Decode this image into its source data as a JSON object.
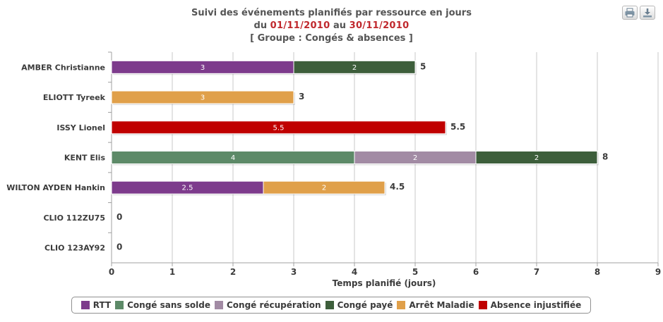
{
  "header": {
    "title": "Suivi des événements planifiés par ressource en jours",
    "range_prefix": "du",
    "date_from": "01/11/2010",
    "range_mid": "au",
    "date_to": "30/11/2010",
    "group_line": "[ Groupe : Congés & absences ]"
  },
  "toolbar": {
    "print_icon": "printer-icon",
    "export_icon": "download-icon"
  },
  "chart_data": {
    "type": "bar",
    "orientation": "horizontal",
    "stacked": true,
    "categories": [
      "AMBER Christianne",
      "ELIOTT Tyreek",
      "ISSY Lionel",
      "KENT Elis",
      "WILTON AYDEN Hankin",
      "CLIO 112ZU75",
      "CLIO 123AY92"
    ],
    "series": [
      {
        "name": "RTT",
        "color": "#7d3b8c",
        "values": [
          3,
          0,
          0,
          0,
          2.5,
          0,
          0
        ]
      },
      {
        "name": "Congé sans solde",
        "color": "#5d8a68",
        "values": [
          0,
          0,
          0,
          4,
          0,
          0,
          0
        ]
      },
      {
        "name": "Congé récupération",
        "color": "#a28ba4",
        "values": [
          0,
          0,
          0,
          2,
          0,
          0,
          0
        ]
      },
      {
        "name": "Congé payé",
        "color": "#3d5e3b",
        "values": [
          2,
          0,
          0,
          2,
          0,
          0,
          0
        ]
      },
      {
        "name": "Arrêt Maladie",
        "color": "#e0a04a",
        "values": [
          0,
          3,
          0,
          0,
          2,
          0,
          0
        ]
      },
      {
        "name": "Absence injustifiée",
        "color": "#c00000",
        "values": [
          0,
          0,
          5.5,
          0,
          0,
          0,
          0
        ]
      }
    ],
    "totals": [
      "5",
      "3",
      "5.5",
      "8",
      "4.5",
      "0",
      "0"
    ],
    "xlabel": "Temps planifié (jours)",
    "xlim": [
      0,
      9
    ],
    "xticks": [
      "0",
      "1",
      "2",
      "3",
      "4",
      "5",
      "6",
      "7",
      "8",
      "9"
    ],
    "grid": true,
    "legend_position": "bottom"
  }
}
